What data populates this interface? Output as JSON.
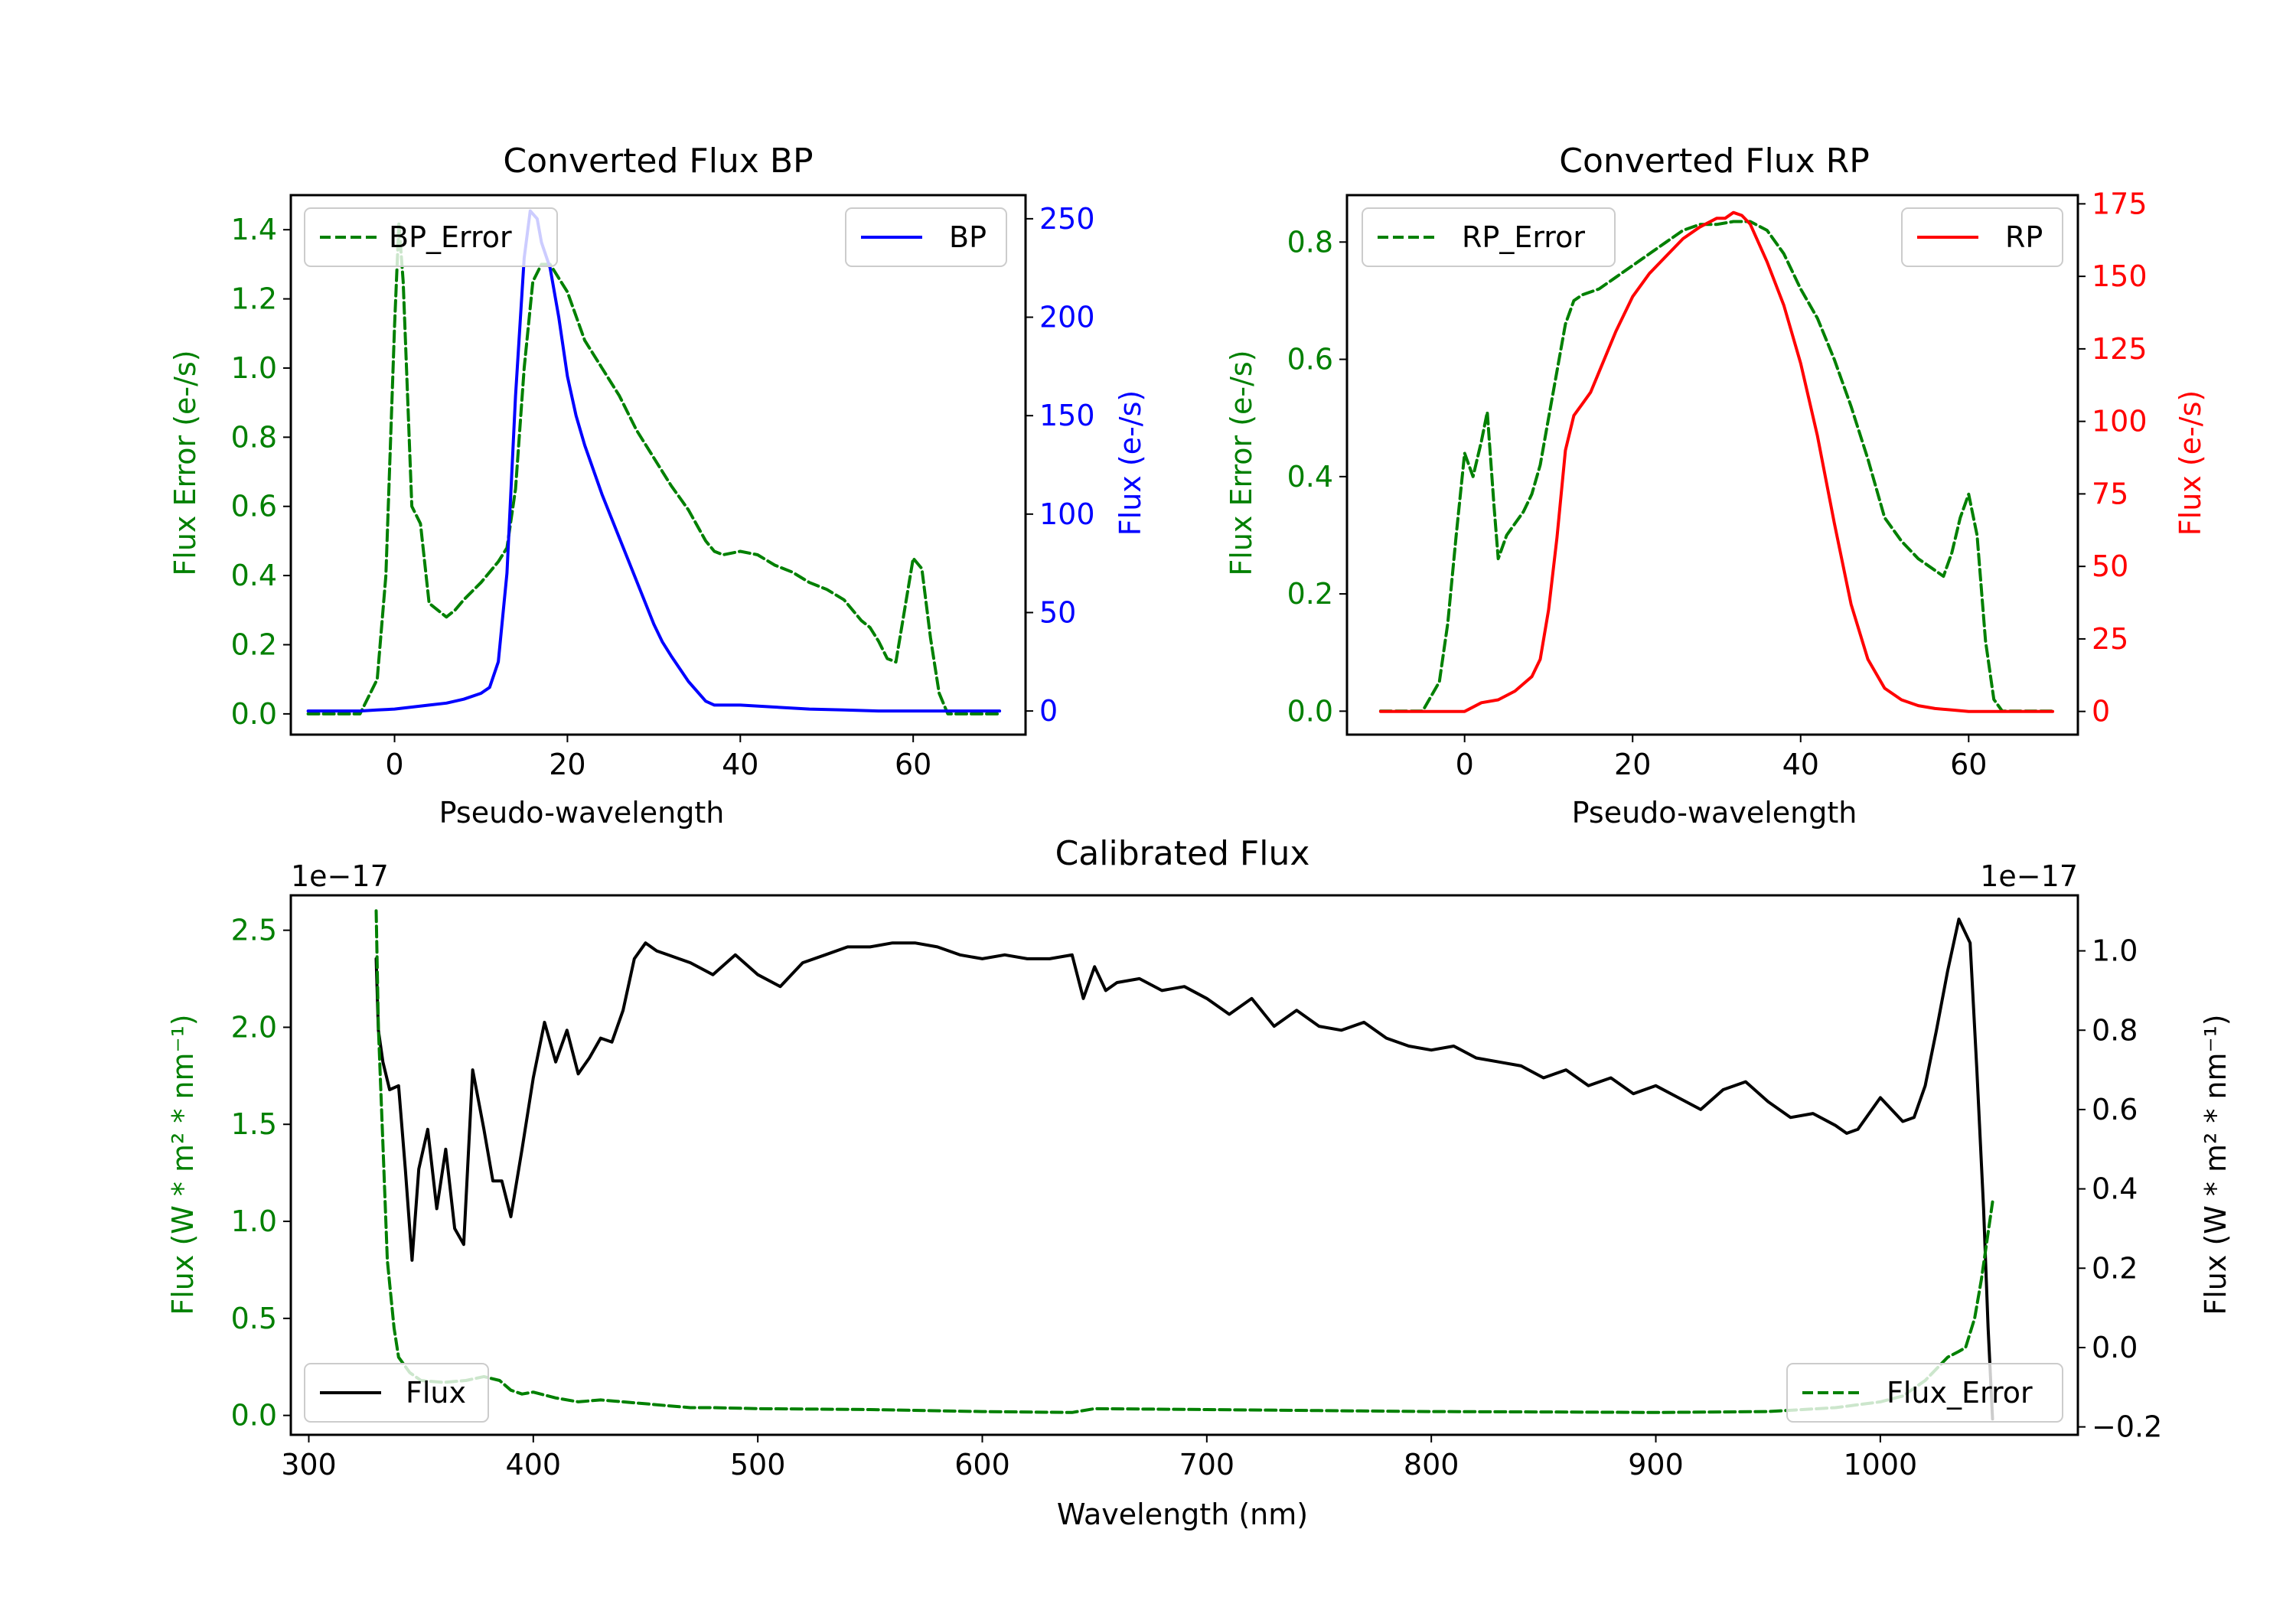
{
  "colors": {
    "error_green": "#008000",
    "bp_blue": "#0000ff",
    "rp_red": "#ff0000",
    "flux_black": "#000000",
    "axes": "#000000",
    "background": "#ffffff"
  },
  "chart_data": [
    {
      "type": "line",
      "title": "Converted Flux BP",
      "xlabel": "Pseudo-wavelength",
      "ylabel_left": "Flux Error (e-/s)",
      "ylabel_right": "Flux (e-/s)",
      "xlim": [
        -12,
        73
      ],
      "ylim_left": [
        -0.06,
        1.5
      ],
      "ylim_right": [
        -12,
        262
      ],
      "xticks": [
        "0",
        "20",
        "40",
        "60"
      ],
      "xtick_values": [
        0,
        20,
        40,
        60
      ],
      "yticks_left": [
        "0.0",
        "0.2",
        "0.4",
        "0.6",
        "0.8",
        "1.0",
        "1.2",
        "1.4"
      ],
      "ytick_values_left": [
        0,
        0.2,
        0.4,
        0.6,
        0.8,
        1.0,
        1.2,
        1.4
      ],
      "yticks_right": [
        "0",
        "50",
        "100",
        "150",
        "200",
        "250"
      ],
      "ytick_values_right": [
        0,
        50,
        100,
        150,
        200,
        250
      ],
      "legend_left": "BP_Error",
      "legend_right": "BP",
      "series": [
        {
          "name": "BP_Error",
          "axis": "left",
          "style": "dashed",
          "color": "green",
          "x": [
            -10,
            -4,
            -2,
            -1,
            0,
            0.5,
            1,
            2,
            3,
            4,
            5,
            6,
            7,
            8,
            10,
            12,
            13,
            14,
            15,
            16,
            17,
            18,
            20,
            22,
            24,
            26,
            28,
            30,
            32,
            34,
            36,
            37,
            38,
            40,
            42,
            44,
            46,
            48,
            50,
            52,
            54,
            55,
            56,
            57,
            58,
            59,
            60,
            61,
            62,
            63,
            64,
            66,
            70
          ],
          "y": [
            0,
            0,
            0.1,
            0.4,
            1.12,
            1.42,
            1.25,
            0.6,
            0.55,
            0.32,
            0.3,
            0.28,
            0.3,
            0.33,
            0.38,
            0.44,
            0.48,
            0.65,
            1.0,
            1.25,
            1.3,
            1.3,
            1.22,
            1.08,
            1.0,
            0.92,
            0.82,
            0.74,
            0.66,
            0.59,
            0.5,
            0.47,
            0.46,
            0.47,
            0.46,
            0.43,
            0.41,
            0.38,
            0.36,
            0.33,
            0.27,
            0.25,
            0.21,
            0.16,
            0.15,
            0.3,
            0.45,
            0.42,
            0.22,
            0.06,
            0,
            0,
            0
          ]
        },
        {
          "name": "BP",
          "axis": "right",
          "style": "solid",
          "color": "blue",
          "x": [
            -10,
            -4,
            -2,
            0,
            2,
            4,
            6,
            8,
            10,
            11,
            12,
            13,
            14,
            15,
            15.7,
            16.5,
            17,
            18,
            19,
            20,
            21,
            22,
            24,
            26,
            28,
            30,
            31,
            32,
            34,
            36,
            37,
            38,
            40,
            44,
            48,
            52,
            56,
            60,
            64,
            70
          ],
          "y": [
            0,
            0,
            0.5,
            1,
            2,
            3,
            4,
            6,
            9,
            12,
            25,
            70,
            160,
            230,
            254,
            250,
            238,
            225,
            200,
            170,
            150,
            135,
            110,
            88,
            66,
            44,
            35,
            28,
            15,
            5,
            3,
            3,
            3,
            2,
            1,
            0.5,
            0,
            0,
            0,
            0
          ]
        }
      ]
    },
    {
      "type": "line",
      "title": "Converted Flux RP",
      "xlabel": "Pseudo-wavelength",
      "ylabel_left": "Flux Error (e-/s)",
      "ylabel_right": "Flux (e-/s)",
      "xlim": [
        -14,
        73
      ],
      "ylim_left": [
        -0.04,
        0.88
      ],
      "ylim_right": [
        -8,
        178
      ],
      "xticks": [
        "0",
        "20",
        "40",
        "60"
      ],
      "xtick_values": [
        0,
        20,
        40,
        60
      ],
      "yticks_left": [
        "0.0",
        "0.2",
        "0.4",
        "0.6",
        "0.8"
      ],
      "ytick_values_left": [
        0,
        0.2,
        0.4,
        0.6,
        0.8
      ],
      "yticks_right": [
        "0",
        "25",
        "50",
        "75",
        "100",
        "125",
        "150",
        "175"
      ],
      "ytick_values_right": [
        0,
        25,
        50,
        75,
        100,
        125,
        150,
        175
      ],
      "legend_left": "RP_Error",
      "legend_right": "RP",
      "series": [
        {
          "name": "RP_Error",
          "axis": "left",
          "style": "dashed",
          "color": "green",
          "x": [
            -10,
            -5,
            -3,
            -2,
            -1,
            0,
            1,
            2,
            2.7,
            3.5,
            4,
            5,
            6,
            7,
            8,
            9,
            10,
            11,
            12,
            13,
            14,
            16,
            18,
            20,
            22,
            24,
            26,
            28,
            30,
            32,
            34,
            36,
            38,
            40,
            42,
            44,
            46,
            48,
            50,
            52,
            54,
            56,
            57,
            58,
            59,
            60,
            61,
            62,
            63,
            64,
            66,
            70
          ],
          "y": [
            0,
            0,
            0.05,
            0.15,
            0.3,
            0.44,
            0.4,
            0.46,
            0.51,
            0.35,
            0.26,
            0.3,
            0.32,
            0.34,
            0.37,
            0.42,
            0.5,
            0.58,
            0.66,
            0.7,
            0.71,
            0.72,
            0.74,
            0.76,
            0.78,
            0.8,
            0.82,
            0.83,
            0.83,
            0.835,
            0.835,
            0.82,
            0.78,
            0.72,
            0.67,
            0.6,
            0.52,
            0.43,
            0.33,
            0.29,
            0.26,
            0.24,
            0.23,
            0.27,
            0.33,
            0.37,
            0.3,
            0.12,
            0.02,
            0,
            0,
            0
          ]
        },
        {
          "name": "RP",
          "axis": "right",
          "style": "solid",
          "color": "red",
          "x": [
            -10,
            -4,
            0,
            2,
            4,
            6,
            8,
            9,
            10,
            11,
            12,
            13,
            14,
            15,
            16,
            18,
            20,
            22,
            24,
            26,
            28,
            30,
            31,
            32,
            33,
            34,
            36,
            38,
            40,
            42,
            44,
            46,
            48,
            50,
            52,
            54,
            56,
            58,
            60,
            62,
            66,
            70
          ],
          "y": [
            0,
            0,
            0,
            3,
            4,
            7,
            12,
            18,
            35,
            60,
            90,
            102,
            106,
            110,
            117,
            131,
            143,
            151,
            157,
            163,
            167,
            170,
            170,
            172,
            171,
            168,
            155,
            140,
            120,
            95,
            65,
            37,
            18,
            8,
            4,
            2,
            1,
            0.5,
            0,
            0,
            0,
            0
          ]
        }
      ]
    },
    {
      "type": "line",
      "title": "Calibrated Flux",
      "xlabel": "Wavelength (nm)",
      "ylabel_left": "Flux (W * m² * nm⁻¹)",
      "ylabel_right": "Flux (W * m² * nm⁻¹)",
      "offset_left": "1e−17",
      "offset_right": "1e−17",
      "xlim": [
        292,
        1088
      ],
      "ylim_left": [
        -0.1,
        2.68
      ],
      "ylim_right": [
        -0.22,
        1.14
      ],
      "xticks": [
        "300",
        "400",
        "500",
        "600",
        "700",
        "800",
        "900",
        "1000"
      ],
      "xtick_values": [
        300,
        400,
        500,
        600,
        700,
        800,
        900,
        1000
      ],
      "yticks_left": [
        "0.0",
        "0.5",
        "1.0",
        "1.5",
        "2.0",
        "2.5"
      ],
      "ytick_values_left": [
        0,
        0.5,
        1.0,
        1.5,
        2.0,
        2.5
      ],
      "yticks_right": [
        "−0.2",
        "0.0",
        "0.2",
        "0.4",
        "0.6",
        "0.8",
        "1.0"
      ],
      "ytick_values_right": [
        -0.2,
        0,
        0.2,
        0.4,
        0.6,
        0.8,
        1.0
      ],
      "legend_left": "Flux",
      "legend_right": "Flux_Error",
      "series": [
        {
          "name": "Flux",
          "axis": "right",
          "style": "solid",
          "color": "black",
          "x": [
            330,
            331,
            333,
            336,
            340,
            343,
            346,
            349,
            353,
            357,
            361,
            365,
            369,
            373,
            378,
            382,
            386,
            390,
            395,
            400,
            405,
            410,
            415,
            420,
            425,
            430,
            435,
            440,
            445,
            450,
            455,
            460,
            470,
            480,
            490,
            500,
            510,
            520,
            530,
            540,
            550,
            560,
            570,
            580,
            590,
            600,
            610,
            620,
            630,
            640,
            645,
            650,
            655,
            660,
            670,
            680,
            690,
            700,
            710,
            720,
            730,
            740,
            750,
            760,
            770,
            780,
            790,
            800,
            810,
            820,
            830,
            840,
            850,
            860,
            870,
            880,
            890,
            900,
            910,
            920,
            930,
            940,
            950,
            960,
            970,
            980,
            985,
            990,
            1000,
            1010,
            1015,
            1020,
            1025,
            1030,
            1035,
            1040,
            1043,
            1046,
            1048,
            1050
          ],
          "y": [
            0.98,
            0.8,
            0.72,
            0.65,
            0.66,
            0.45,
            0.22,
            0.45,
            0.55,
            0.35,
            0.5,
            0.3,
            0.26,
            0.7,
            0.55,
            0.42,
            0.42,
            0.33,
            0.5,
            0.68,
            0.82,
            0.72,
            0.8,
            0.69,
            0.73,
            0.78,
            0.77,
            0.85,
            0.98,
            1.02,
            1.0,
            0.99,
            0.97,
            0.94,
            0.99,
            0.94,
            0.91,
            0.97,
            0.99,
            1.01,
            1.01,
            1.02,
            1.02,
            1.01,
            0.99,
            0.98,
            0.99,
            0.98,
            0.98,
            0.99,
            0.88,
            0.96,
            0.9,
            0.92,
            0.93,
            0.9,
            0.91,
            0.88,
            0.84,
            0.88,
            0.81,
            0.85,
            0.81,
            0.8,
            0.82,
            0.78,
            0.76,
            0.75,
            0.76,
            0.73,
            0.72,
            0.71,
            0.68,
            0.7,
            0.66,
            0.68,
            0.64,
            0.66,
            0.63,
            0.6,
            0.65,
            0.67,
            0.62,
            0.58,
            0.59,
            0.56,
            0.54,
            0.55,
            0.63,
            0.57,
            0.58,
            0.66,
            0.8,
            0.95,
            1.08,
            1.02,
            0.7,
            0.35,
            0.05,
            -0.18
          ]
        },
        {
          "name": "Flux_Error",
          "axis": "left",
          "style": "dashed",
          "color": "green",
          "x": [
            330,
            331,
            333,
            335,
            338,
            340,
            345,
            350,
            360,
            370,
            378,
            385,
            390,
            395,
            400,
            410,
            420,
            430,
            440,
            450,
            460,
            470,
            480,
            500,
            550,
            600,
            640,
            650,
            700,
            750,
            800,
            850,
            900,
            950,
            980,
            1000,
            1010,
            1020,
            1025,
            1030,
            1035,
            1038,
            1042,
            1045,
            1050
          ],
          "y": [
            2.6,
            2.0,
            1.4,
            0.8,
            0.45,
            0.3,
            0.22,
            0.18,
            0.17,
            0.18,
            0.2,
            0.18,
            0.13,
            0.11,
            0.12,
            0.09,
            0.07,
            0.08,
            0.07,
            0.06,
            0.05,
            0.04,
            0.04,
            0.035,
            0.03,
            0.02,
            0.015,
            0.035,
            0.03,
            0.025,
            0.02,
            0.018,
            0.015,
            0.02,
            0.04,
            0.07,
            0.1,
            0.18,
            0.24,
            0.3,
            0.33,
            0.35,
            0.5,
            0.7,
            1.1
          ]
        }
      ]
    }
  ]
}
